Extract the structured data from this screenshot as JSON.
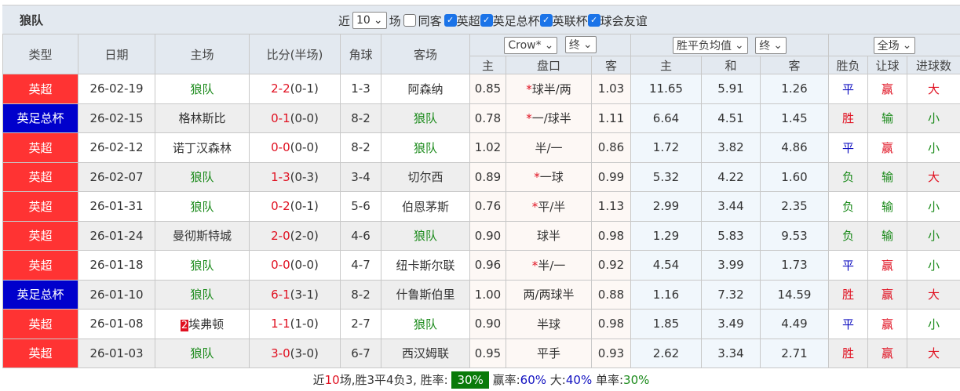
{
  "team": "狼队",
  "filters": {
    "near_label": "近",
    "count": "10",
    "unit": "场",
    "same_label": "同客",
    "same_checked": false,
    "leagues": [
      {
        "label": "英超",
        "checked": true
      },
      {
        "label": "英足总杯",
        "checked": true
      },
      {
        "label": "英联杯",
        "checked": true
      },
      {
        "label": "球会友谊",
        "checked": true
      }
    ]
  },
  "headers": {
    "type": "类型",
    "date": "日期",
    "home": "主场",
    "score": "比分(半场)",
    "corner": "角球",
    "away": "客场",
    "odds_company": "Crow*",
    "odds_stage": "终",
    "euro_type": "胜平负均值",
    "euro_stage": "终",
    "scope": "全场",
    "sub": [
      "主",
      "盘口",
      "客",
      "主",
      "和",
      "客",
      "胜负",
      "让球",
      "进球数"
    ]
  },
  "colors": {
    "英超": "#ff3333",
    "英足总杯": "#0000cc",
    "win": "#e01020",
    "draw": "#1010c0",
    "lose": "#1a8a1a"
  },
  "rows": [
    {
      "league": "英超",
      "date": "26-02-19",
      "home": "狼队",
      "badge": "",
      "score": "2-2",
      "half": "(0-1)",
      "corner": "1-3",
      "away": "阿森纳",
      "ah_home": "0.85",
      "ah_star": "*",
      "ah_line": "球半/两",
      "ah_away": "1.03",
      "e_home": "11.65",
      "e_draw": "5.91",
      "e_away": "1.26",
      "res": "平",
      "hc": "赢",
      "ou": "大"
    },
    {
      "league": "英足总杯",
      "date": "26-02-15",
      "home": "格林斯比",
      "badge": "",
      "score": "0-1",
      "half": "(0-0)",
      "corner": "8-2",
      "away": "狼队",
      "ah_home": "0.78",
      "ah_star": "*",
      "ah_line": "一/球半",
      "ah_away": "1.11",
      "e_home": "6.64",
      "e_draw": "4.51",
      "e_away": "1.45",
      "res": "胜",
      "hc": "输",
      "ou": "小"
    },
    {
      "league": "英超",
      "date": "26-02-12",
      "home": "诺丁汉森林",
      "badge": "",
      "score": "0-0",
      "half": "(0-0)",
      "corner": "8-2",
      "away": "狼队",
      "ah_home": "1.02",
      "ah_star": "",
      "ah_line": "半/一",
      "ah_away": "0.86",
      "e_home": "1.72",
      "e_draw": "3.82",
      "e_away": "4.86",
      "res": "平",
      "hc": "赢",
      "ou": "小"
    },
    {
      "league": "英超",
      "date": "26-02-07",
      "home": "狼队",
      "badge": "",
      "score": "1-3",
      "half": "(0-3)",
      "corner": "3-4",
      "away": "切尔西",
      "ah_home": "0.89",
      "ah_star": "*",
      "ah_line": "一球",
      "ah_away": "0.99",
      "e_home": "5.32",
      "e_draw": "4.22",
      "e_away": "1.60",
      "res": "负",
      "hc": "输",
      "ou": "大"
    },
    {
      "league": "英超",
      "date": "26-01-31",
      "home": "狼队",
      "badge": "",
      "score": "0-2",
      "half": "(0-1)",
      "corner": "5-6",
      "away": "伯恩茅斯",
      "ah_home": "0.76",
      "ah_star": "*",
      "ah_line": "平/半",
      "ah_away": "1.13",
      "e_home": "2.99",
      "e_draw": "3.44",
      "e_away": "2.35",
      "res": "负",
      "hc": "输",
      "ou": "小"
    },
    {
      "league": "英超",
      "date": "26-01-24",
      "home": "曼彻斯特城",
      "badge": "",
      "score": "2-0",
      "half": "(2-0)",
      "corner": "4-6",
      "away": "狼队",
      "ah_home": "0.90",
      "ah_star": "",
      "ah_line": "球半",
      "ah_away": "0.98",
      "e_home": "1.29",
      "e_draw": "5.83",
      "e_away": "9.53",
      "res": "负",
      "hc": "输",
      "ou": "小"
    },
    {
      "league": "英超",
      "date": "26-01-18",
      "home": "狼队",
      "badge": "",
      "score": "0-0",
      "half": "(0-0)",
      "corner": "4-7",
      "away": "纽卡斯尔联",
      "ah_home": "0.96",
      "ah_star": "*",
      "ah_line": "半/一",
      "ah_away": "0.92",
      "e_home": "4.54",
      "e_draw": "3.99",
      "e_away": "1.73",
      "res": "平",
      "hc": "赢",
      "ou": "小"
    },
    {
      "league": "英足总杯",
      "date": "26-01-10",
      "home": "狼队",
      "badge": "",
      "score": "6-1",
      "half": "(3-1)",
      "corner": "8-2",
      "away": "什鲁斯伯里",
      "ah_home": "1.00",
      "ah_star": "",
      "ah_line": "两/两球半",
      "ah_away": "0.88",
      "e_home": "1.16",
      "e_draw": "7.32",
      "e_away": "14.59",
      "res": "胜",
      "hc": "赢",
      "ou": "大"
    },
    {
      "league": "英超",
      "date": "26-01-08",
      "home": "埃弗顿",
      "badge": "2",
      "score": "1-1",
      "half": "(1-0)",
      "corner": "2-7",
      "away": "狼队",
      "ah_home": "0.90",
      "ah_star": "",
      "ah_line": "半球",
      "ah_away": "0.98",
      "e_home": "1.85",
      "e_draw": "3.49",
      "e_away": "4.49",
      "res": "平",
      "hc": "赢",
      "ou": "小"
    },
    {
      "league": "英超",
      "date": "26-01-03",
      "home": "狼队",
      "badge": "",
      "score": "3-0",
      "half": "(3-0)",
      "corner": "6-7",
      "away": "西汉姆联",
      "ah_home": "0.95",
      "ah_star": "",
      "ah_line": "平手",
      "ah_away": "0.93",
      "e_home": "2.62",
      "e_draw": "3.34",
      "e_away": "2.71",
      "res": "胜",
      "hc": "赢",
      "ou": "大"
    }
  ],
  "summary": {
    "p1": "近",
    "n": "10",
    "p2": "场,胜3平4负3, 胜率:",
    "win_rate": "30%",
    "p3": "赢率:",
    "hc_rate": "60%",
    "p4": "大:",
    "over_rate": "40%",
    "p5": "单率:",
    "odd_rate": "30%"
  }
}
